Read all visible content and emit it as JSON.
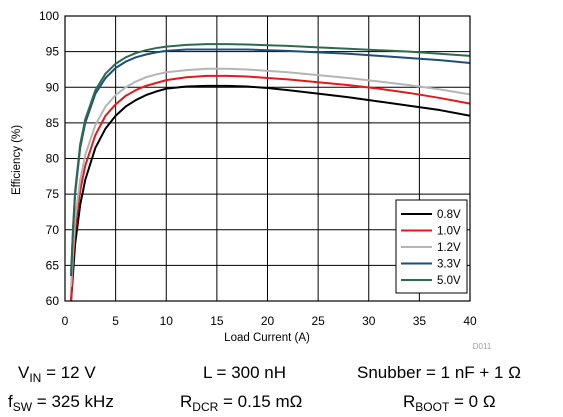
{
  "chart_data": {
    "type": "line",
    "title": "",
    "xlabel": "Load Current (A)",
    "ylabel": "Efficiency (%)",
    "xlim": [
      0,
      40
    ],
    "ylim": [
      60,
      100
    ],
    "x_ticks": [
      0,
      5,
      10,
      15,
      20,
      25,
      30,
      35,
      40
    ],
    "y_ticks": [
      60,
      65,
      70,
      75,
      80,
      85,
      90,
      95,
      100
    ],
    "grid": true,
    "legend_position": "bottom-right",
    "figure_id": "D011",
    "series": [
      {
        "name": "0.8V",
        "color": "#000000",
        "points": [
          [
            0.6,
            60
          ],
          [
            0.8,
            64
          ],
          [
            1,
            68
          ],
          [
            1.5,
            73.5
          ],
          [
            2,
            77
          ],
          [
            3,
            81.5
          ],
          [
            4,
            84.2
          ],
          [
            5,
            86
          ],
          [
            6,
            87.3
          ],
          [
            7,
            88.2
          ],
          [
            8,
            88.9
          ],
          [
            9,
            89.4
          ],
          [
            10,
            89.8
          ],
          [
            12,
            90.1
          ],
          [
            14,
            90.2
          ],
          [
            16,
            90.2
          ],
          [
            18,
            90.1
          ],
          [
            20,
            89.9
          ],
          [
            22,
            89.6
          ],
          [
            25,
            89.1
          ],
          [
            28,
            88.6
          ],
          [
            31,
            88
          ],
          [
            34,
            87.4
          ],
          [
            37,
            86.8
          ],
          [
            40,
            86
          ]
        ]
      },
      {
        "name": "1.0V",
        "color": "#e3191c",
        "points": [
          [
            0.6,
            60
          ],
          [
            0.8,
            66
          ],
          [
            1,
            70
          ],
          [
            1.5,
            75.5
          ],
          [
            2,
            79
          ],
          [
            3,
            83.3
          ],
          [
            4,
            86
          ],
          [
            5,
            87.6
          ],
          [
            6,
            88.8
          ],
          [
            7,
            89.6
          ],
          [
            8,
            90.2
          ],
          [
            9,
            90.6
          ],
          [
            10,
            91
          ],
          [
            12,
            91.4
          ],
          [
            14,
            91.6
          ],
          [
            16,
            91.6
          ],
          [
            18,
            91.5
          ],
          [
            20,
            91.3
          ],
          [
            22,
            91.1
          ],
          [
            25,
            90.7
          ],
          [
            28,
            90.3
          ],
          [
            31,
            89.8
          ],
          [
            34,
            89.2
          ],
          [
            37,
            88.5
          ],
          [
            40,
            87.7
          ]
        ]
      },
      {
        "name": "1.2V",
        "color": "#b5b5b5",
        "points": [
          [
            0.6,
            62
          ],
          [
            0.8,
            67
          ],
          [
            1,
            71.5
          ],
          [
            1.5,
            77
          ],
          [
            2,
            80.5
          ],
          [
            3,
            84.7
          ],
          [
            4,
            87.3
          ],
          [
            5,
            88.9
          ],
          [
            6,
            90
          ],
          [
            7,
            90.8
          ],
          [
            8,
            91.4
          ],
          [
            9,
            91.8
          ],
          [
            10,
            92.1
          ],
          [
            12,
            92.4
          ],
          [
            14,
            92.6
          ],
          [
            16,
            92.6
          ],
          [
            18,
            92.5
          ],
          [
            20,
            92.3
          ],
          [
            22,
            92.1
          ],
          [
            25,
            91.7
          ],
          [
            28,
            91.3
          ],
          [
            31,
            90.8
          ],
          [
            34,
            90.3
          ],
          [
            37,
            89.7
          ],
          [
            40,
            89
          ]
        ]
      },
      {
        "name": "3.3V",
        "color": "#1f4e79",
        "points": [
          [
            0.6,
            63.5
          ],
          [
            0.8,
            70
          ],
          [
            1,
            75
          ],
          [
            1.5,
            81.5
          ],
          [
            2,
            85
          ],
          [
            3,
            89.1
          ],
          [
            4,
            91.3
          ],
          [
            5,
            92.7
          ],
          [
            6,
            93.6
          ],
          [
            7,
            94.2
          ],
          [
            8,
            94.6
          ],
          [
            9,
            94.9
          ],
          [
            10,
            95.1
          ],
          [
            12,
            95.3
          ],
          [
            14,
            95.3
          ],
          [
            16,
            95.3
          ],
          [
            18,
            95.3
          ],
          [
            20,
            95.2
          ],
          [
            22,
            95.1
          ],
          [
            25,
            94.9
          ],
          [
            28,
            94.7
          ],
          [
            31,
            94.4
          ],
          [
            34,
            94.1
          ],
          [
            37,
            93.8
          ],
          [
            40,
            93.4
          ]
        ]
      },
      {
        "name": "5.0V",
        "color": "#2d6b4f",
        "points": [
          [
            0.6,
            64
          ],
          [
            0.8,
            70.5
          ],
          [
            1,
            75.5
          ],
          [
            1.5,
            82
          ],
          [
            2,
            85.5
          ],
          [
            3,
            89.6
          ],
          [
            4,
            91.9
          ],
          [
            5,
            93.3
          ],
          [
            6,
            94.2
          ],
          [
            7,
            94.8
          ],
          [
            8,
            95.2
          ],
          [
            9,
            95.5
          ],
          [
            10,
            95.7
          ],
          [
            12,
            95.95
          ],
          [
            14,
            96.05
          ],
          [
            16,
            96.05
          ],
          [
            18,
            96
          ],
          [
            20,
            95.9
          ],
          [
            22,
            95.8
          ],
          [
            25,
            95.6
          ],
          [
            28,
            95.4
          ],
          [
            31,
            95.2
          ],
          [
            34,
            95
          ],
          [
            37,
            94.7
          ],
          [
            40,
            94.4
          ]
        ]
      }
    ]
  },
  "conditions": {
    "vin": {
      "main": "V",
      "sub": "IN",
      "value": " = 12 V"
    },
    "inductor": {
      "text": "L = 300 nH"
    },
    "snubber": {
      "text": "Snubber = 1 nF + 1 Ω"
    },
    "fsw": {
      "main": "f",
      "sub": "SW",
      "value": " = 325 kHz"
    },
    "rdcr": {
      "main": "R",
      "sub": "DCR",
      "value": " = 0.15 mΩ"
    },
    "rboot": {
      "main": "R",
      "sub": "BOOT",
      "value": " = 0 Ω"
    }
  }
}
